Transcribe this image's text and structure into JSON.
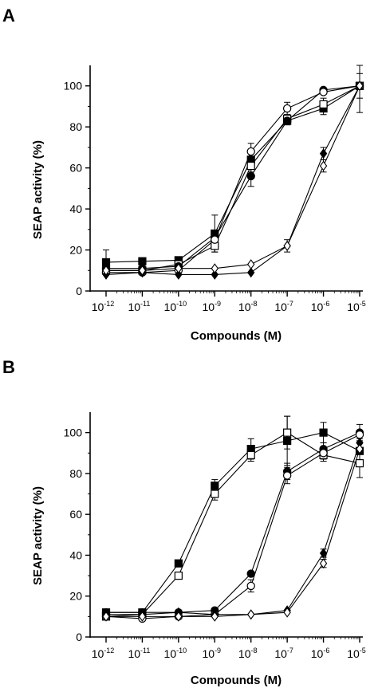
{
  "chart_data": [
    {
      "type": "line",
      "panel": "A",
      "xlabel": "Compounds (M)",
      "ylabel": "SEAP activity (%)",
      "x_scale": "log",
      "xlim": [
        1e-12,
        1e-05
      ],
      "ylim": [
        0,
        110
      ],
      "x_ticks": [
        {
          "base": "10",
          "exp": "-12"
        },
        {
          "base": "10",
          "exp": "-11"
        },
        {
          "base": "10",
          "exp": "-10"
        },
        {
          "base": "10",
          "exp": "-9"
        },
        {
          "base": "10",
          "exp": "-8"
        },
        {
          "base": "10",
          "exp": "-7"
        },
        {
          "base": "10",
          "exp": "-6"
        },
        {
          "base": "10",
          "exp": "-5"
        }
      ],
      "y_ticks": [
        "0",
        "20",
        "40",
        "60",
        "80",
        "100"
      ],
      "x": [
        1e-12,
        1e-11,
        1e-10,
        1e-09,
        1e-08,
        1e-07,
        1e-06,
        1e-05
      ],
      "series": [
        {
          "marker": "square-filled",
          "values": [
            14,
            14.5,
            15,
            28,
            64,
            83,
            89,
            100
          ],
          "err": [
            6,
            0,
            0,
            9,
            3,
            2,
            3,
            13
          ]
        },
        {
          "marker": "square-open",
          "values": [
            10,
            10,
            13,
            22,
            61,
            84,
            91,
            100
          ],
          "err": [
            0,
            0,
            0,
            3,
            3,
            2,
            3,
            6
          ]
        },
        {
          "marker": "circle-filled",
          "values": [
            11,
            11,
            12,
            26,
            56,
            83,
            98,
            100
          ],
          "err": [
            0,
            0,
            0,
            3,
            5,
            2,
            0,
            0
          ]
        },
        {
          "marker": "circle-open",
          "values": [
            9,
            9,
            10,
            25,
            68,
            89,
            97,
            100
          ],
          "err": [
            0,
            0,
            0,
            3,
            4,
            3,
            0,
            0
          ]
        },
        {
          "marker": "diamond-filled",
          "values": [
            8,
            9,
            8,
            8,
            9,
            22,
            67,
            100
          ],
          "err": [
            0,
            0,
            0,
            0,
            0,
            3,
            3,
            0
          ]
        },
        {
          "marker": "diamond-open",
          "values": [
            10,
            10,
            11,
            11,
            13,
            22,
            61,
            100
          ],
          "err": [
            0,
            0,
            0,
            0,
            0,
            0,
            3,
            0
          ]
        }
      ]
    },
    {
      "type": "line",
      "panel": "B",
      "xlabel": "Compounds (M)",
      "ylabel": "SEAP activity (%)",
      "x_scale": "log",
      "xlim": [
        1e-12,
        1e-05
      ],
      "ylim": [
        0,
        110
      ],
      "x_ticks": [
        {
          "base": "10",
          "exp": "-12"
        },
        {
          "base": "10",
          "exp": "-11"
        },
        {
          "base": "10",
          "exp": "-10"
        },
        {
          "base": "10",
          "exp": "-9"
        },
        {
          "base": "10",
          "exp": "-8"
        },
        {
          "base": "10",
          "exp": "-7"
        },
        {
          "base": "10",
          "exp": "-6"
        },
        {
          "base": "10",
          "exp": "-5"
        }
      ],
      "y_ticks": [
        "0",
        "20",
        "40",
        "60",
        "80",
        "100"
      ],
      "x": [
        1e-12,
        1e-11,
        1e-10,
        1e-09,
        1e-08,
        1e-07,
        1e-06,
        1e-05
      ],
      "series": [
        {
          "marker": "square-filled",
          "values": [
            12,
            12,
            36,
            74,
            92,
            96,
            100,
            91
          ],
          "err": [
            0,
            0,
            0,
            3,
            5,
            12,
            5,
            6
          ]
        },
        {
          "marker": "square-open",
          "values": [
            10,
            11,
            30,
            70,
            89,
            100,
            89,
            85
          ],
          "err": [
            0,
            0,
            0,
            3,
            3,
            8,
            3,
            7
          ]
        },
        {
          "marker": "circle-filled",
          "values": [
            12,
            12,
            12,
            13,
            31,
            81,
            92,
            100
          ],
          "err": [
            0,
            0,
            0,
            0,
            0,
            4,
            3,
            4
          ]
        },
        {
          "marker": "circle-open",
          "values": [
            10,
            9,
            10,
            11,
            25,
            79,
            90,
            99
          ],
          "err": [
            0,
            0,
            0,
            0,
            3,
            4,
            3,
            0
          ]
        },
        {
          "marker": "diamond-filled",
          "values": [
            11,
            11,
            12,
            11,
            11,
            13,
            41,
            95
          ],
          "err": [
            0,
            0,
            0,
            0,
            0,
            0,
            2,
            0
          ]
        },
        {
          "marker": "diamond-open",
          "values": [
            10,
            10,
            10,
            10,
            11,
            12,
            36,
            92
          ],
          "err": [
            0,
            0,
            0,
            0,
            0,
            0,
            2,
            0
          ]
        }
      ]
    }
  ]
}
